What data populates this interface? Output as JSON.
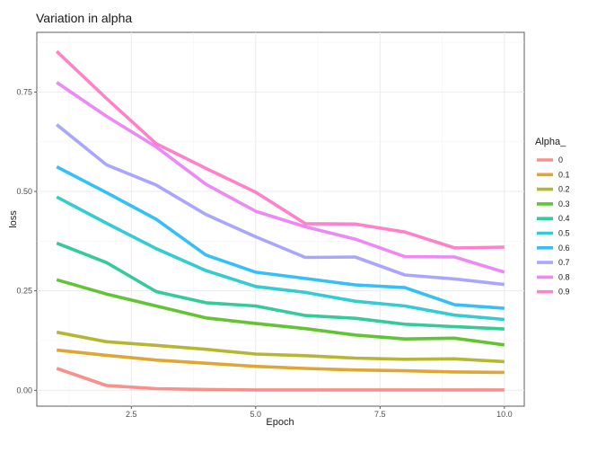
{
  "chart_data": {
    "type": "line",
    "title": "Variation in alpha",
    "xlabel": "Epoch",
    "ylabel": "loss",
    "legend_title": "Alpha_",
    "legend_position": "right",
    "grid": true,
    "x": [
      1,
      2,
      3,
      4,
      5,
      6,
      7,
      8,
      9,
      10
    ],
    "xlim": [
      0.6,
      10.4
    ],
    "ylim": [
      -0.04,
      0.9
    ],
    "x_ticks": [
      2.5,
      5.0,
      7.5,
      10.0
    ],
    "x_tick_labels": [
      "2.5",
      "5.0",
      "7.5",
      "10.0"
    ],
    "y_ticks": [
      0.0,
      0.25,
      0.5,
      0.75
    ],
    "y_tick_labels": [
      "0.00",
      "0.25",
      "0.50",
      "0.75"
    ],
    "series": [
      {
        "name": "0",
        "color": "#F8766D",
        "values": [
          0.055,
          0.012,
          0.004,
          0.002,
          0.001,
          0.001,
          0.001,
          0.001,
          0.001,
          0.001
        ]
      },
      {
        "name": "0.1",
        "color": "#D89000",
        "values": [
          0.101,
          0.088,
          0.076,
          0.068,
          0.06,
          0.055,
          0.051,
          0.049,
          0.046,
          0.045
        ]
      },
      {
        "name": "0.2",
        "color": "#A3A500",
        "values": [
          0.146,
          0.122,
          0.113,
          0.103,
          0.091,
          0.087,
          0.081,
          0.078,
          0.079,
          0.072
        ]
      },
      {
        "name": "0.3",
        "color": "#39B600",
        "values": [
          0.278,
          0.242,
          0.212,
          0.182,
          0.168,
          0.155,
          0.139,
          0.129,
          0.131,
          0.114
        ]
      },
      {
        "name": "0.4",
        "color": "#00BF7D",
        "values": [
          0.37,
          0.321,
          0.248,
          0.22,
          0.212,
          0.188,
          0.181,
          0.166,
          0.16,
          0.154
        ]
      },
      {
        "name": "0.5",
        "color": "#00BFC4",
        "values": [
          0.486,
          0.42,
          0.356,
          0.301,
          0.261,
          0.246,
          0.224,
          0.212,
          0.189,
          0.178
        ]
      },
      {
        "name": "0.6",
        "color": "#00B0F6",
        "values": [
          0.562,
          0.497,
          0.43,
          0.34,
          0.297,
          0.281,
          0.265,
          0.258,
          0.215,
          0.206
        ]
      },
      {
        "name": "0.7",
        "color": "#9590FF",
        "values": [
          0.668,
          0.567,
          0.516,
          0.442,
          0.386,
          0.334,
          0.335,
          0.29,
          0.28,
          0.266
        ]
      },
      {
        "name": "0.8",
        "color": "#E76BF3",
        "values": [
          0.774,
          0.689,
          0.612,
          0.518,
          0.45,
          0.411,
          0.38,
          0.336,
          0.335,
          0.297
        ]
      },
      {
        "name": "0.9",
        "color": "#FF62BC",
        "values": [
          0.852,
          0.734,
          0.62,
          0.558,
          0.498,
          0.419,
          0.418,
          0.398,
          0.358,
          0.36
        ]
      }
    ]
  }
}
